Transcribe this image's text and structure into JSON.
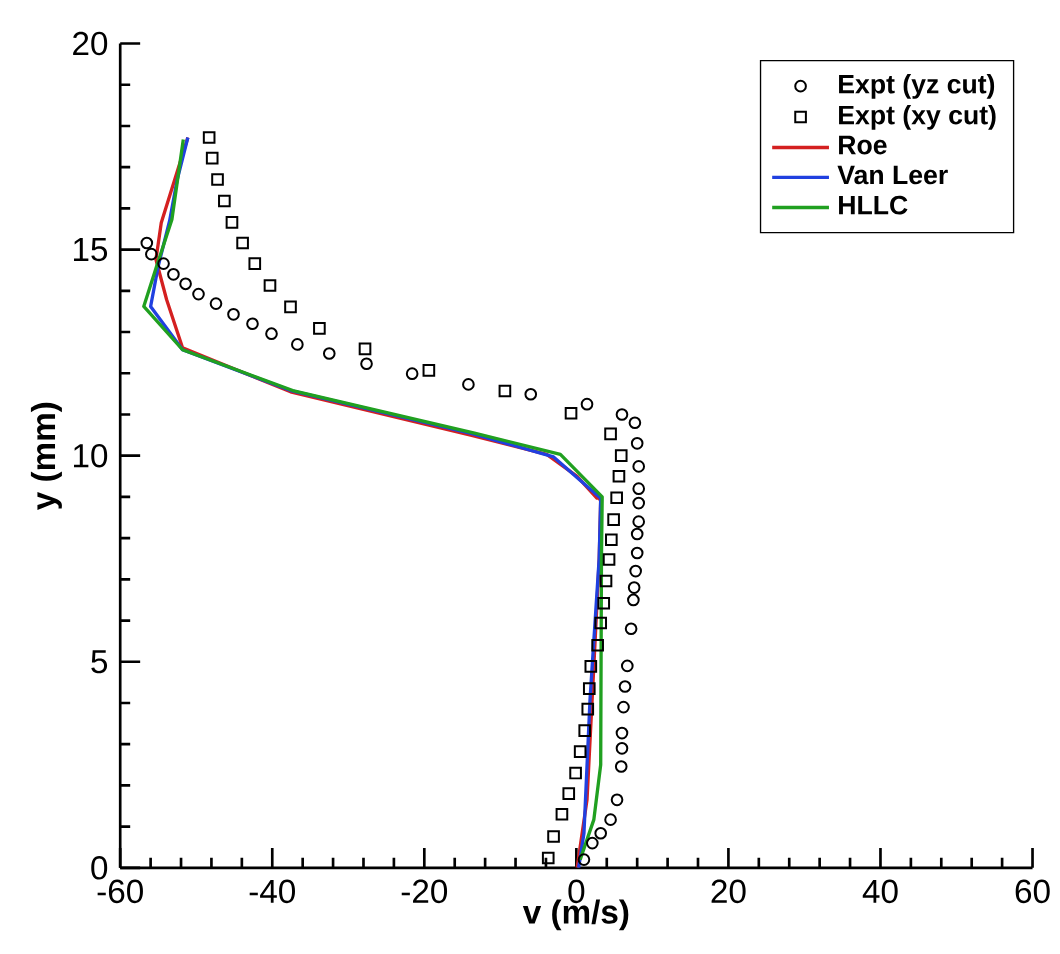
{
  "chart_data": {
    "type": "line",
    "xlabel": "v (m/s)",
    "ylabel": "y (mm)",
    "xlim": [
      -60,
      60
    ],
    "ylim": [
      0,
      20
    ],
    "xticks": [
      -60,
      -40,
      -20,
      0,
      20,
      40,
      60
    ],
    "yticks": [
      0,
      5,
      10,
      15,
      20
    ],
    "grid": false,
    "legend": "top right",
    "series": [
      {
        "name": "Expt (yz cut)",
        "type": "scatter",
        "marker": "circle",
        "color": "#000000",
        "x": [
          -56.5,
          -55.9,
          -54.3,
          -53.0,
          -51.4,
          -49.7,
          -47.4,
          -45.1,
          -42.6,
          -40.1,
          -36.7,
          -32.5,
          -27.6,
          -21.6,
          -14.2,
          -6.0,
          1.4,
          6.0,
          7.7,
          8.0,
          8.2,
          8.2,
          8.2,
          8.2,
          8.0,
          8.0,
          7.8,
          7.6,
          7.5,
          7.2,
          6.7,
          6.4,
          6.2,
          6.0,
          6.0,
          5.9,
          5.35,
          4.5,
          3.2,
          2.1,
          1.0
        ],
        "values": [
          15.16,
          14.89,
          14.66,
          14.4,
          14.17,
          13.92,
          13.69,
          13.43,
          13.2,
          12.96,
          12.7,
          12.48,
          12.23,
          11.99,
          11.73,
          11.49,
          11.25,
          11.0,
          10.8,
          10.3,
          9.74,
          9.2,
          8.85,
          8.4,
          8.1,
          7.64,
          7.2,
          6.8,
          6.5,
          5.8,
          4.9,
          4.4,
          3.9,
          3.27,
          2.9,
          2.46,
          1.65,
          1.17,
          0.84,
          0.6,
          0.2
        ]
      },
      {
        "name": "Expt (xy cut)",
        "type": "scatter",
        "marker": "square",
        "color": "#000000",
        "x": [
          -48.3,
          -47.9,
          -47.2,
          -46.3,
          -45.3,
          -43.9,
          -42.3,
          -40.3,
          -37.6,
          -33.8,
          -27.8,
          -19.4,
          -9.4,
          -0.7,
          4.5,
          5.9,
          5.6,
          5.3,
          4.9,
          4.6,
          4.3,
          3.9,
          3.6,
          3.2,
          2.8,
          1.9,
          1.7,
          1.5,
          1.1,
          0.5,
          -0.1,
          -1.0,
          -1.9,
          -3.0,
          -3.7
        ],
        "values": [
          17.72,
          17.22,
          16.7,
          16.18,
          15.66,
          15.16,
          14.66,
          14.13,
          13.61,
          13.09,
          12.59,
          12.07,
          11.57,
          11.03,
          10.53,
          10.0,
          9.5,
          8.98,
          8.45,
          7.96,
          7.48,
          6.96,
          6.42,
          5.94,
          5.4,
          4.89,
          4.35,
          3.85,
          3.33,
          2.82,
          2.3,
          1.8,
          1.3,
          0.76,
          0.24
        ]
      },
      {
        "name": "Roe",
        "color": "#d42020",
        "x": [
          0.1,
          1.4,
          2.3,
          3.0,
          3.2,
          3.0,
          2.7,
          0.1,
          -3.9,
          -13.9,
          -37.6,
          -51.8,
          -53.9,
          -55.3,
          -54.6,
          -51.1
        ],
        "values": [
          0.0,
          1.65,
          4.9,
          7.48,
          8.9,
          8.97,
          8.97,
          9.5,
          10.03,
          10.5,
          11.55,
          12.62,
          13.79,
          14.76,
          15.65,
          17.72
        ]
      },
      {
        "name": "Van Leer",
        "color": "#2040e0",
        "x": [
          0.3,
          1.0,
          1.8,
          3.0,
          3.2,
          -3.0,
          -13.6,
          -37.4,
          -51.8,
          -56.0,
          -55.0,
          -53.5,
          -52.5,
          -51.1
        ],
        "values": [
          0.0,
          0.84,
          4.1,
          7.5,
          8.97,
          9.97,
          10.53,
          11.57,
          12.57,
          13.62,
          14.6,
          15.7,
          16.7,
          17.72
        ]
      },
      {
        "name": "HLLC",
        "color": "#20a020",
        "x": [
          0.5,
          2.3,
          3.2,
          3.3,
          3.4,
          -2.1,
          -13.4,
          -37.3,
          -51.8,
          -56.9,
          -55.2,
          -53.2,
          -51.7
        ],
        "values": [
          0.2,
          1.17,
          2.5,
          7.5,
          9.0,
          10.03,
          10.55,
          11.58,
          12.57,
          13.62,
          14.6,
          15.73,
          17.67
        ]
      }
    ]
  }
}
